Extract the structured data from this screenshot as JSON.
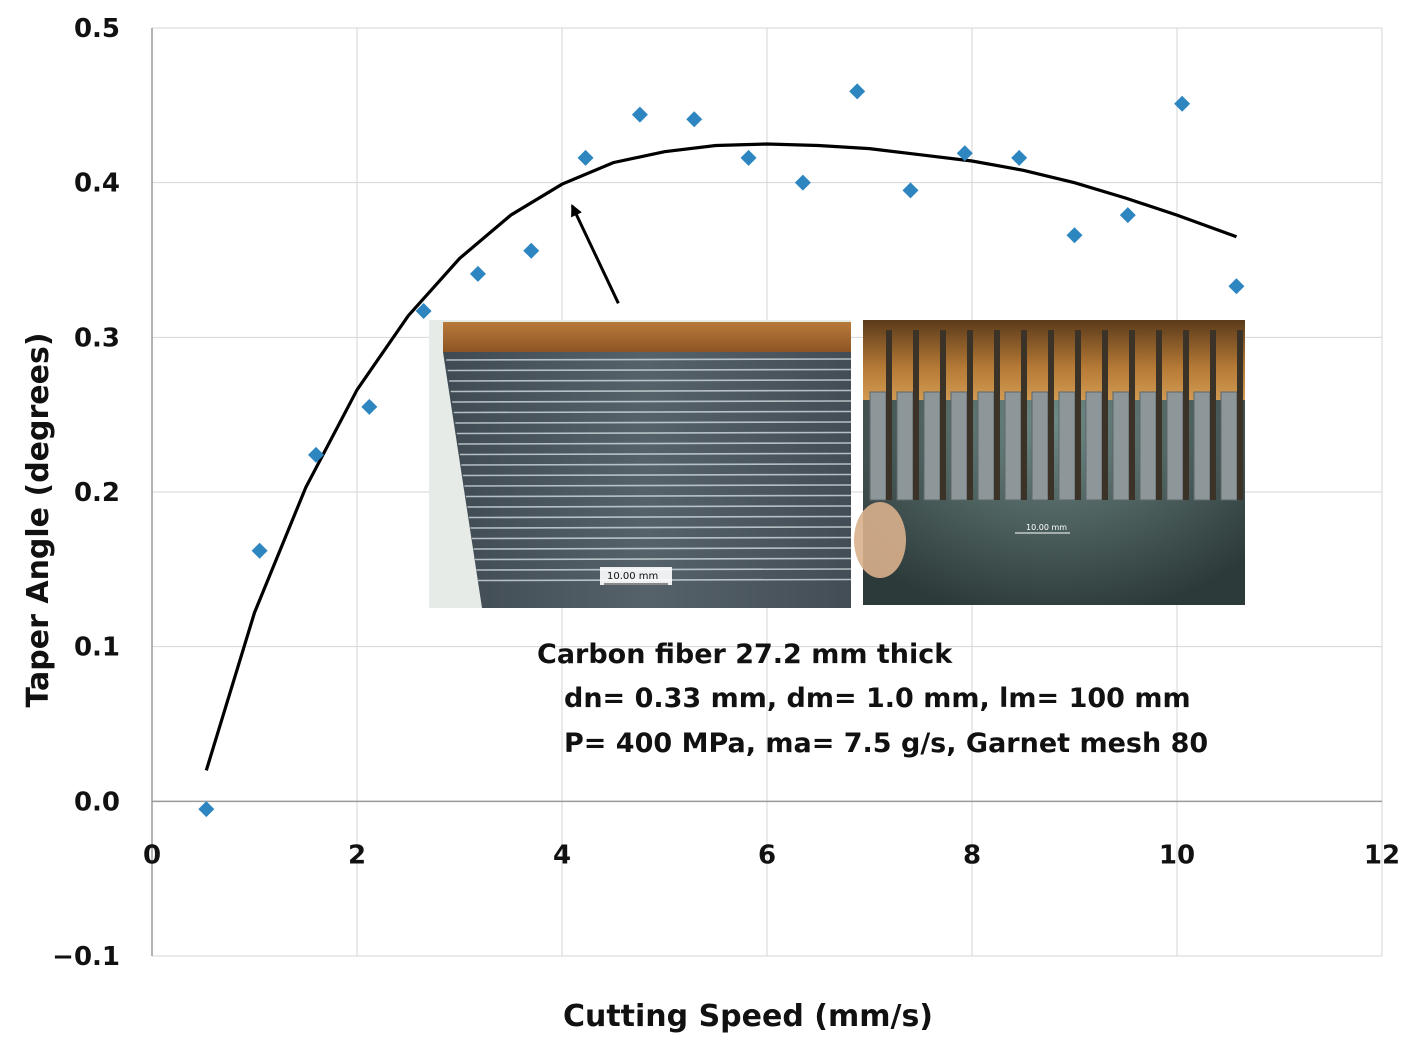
{
  "chart_data": {
    "type": "scatter",
    "title": "",
    "xlabel": "Cutting Speed (mm/s)",
    "ylabel": "Taper  Angle (degrees)",
    "xlim": [
      0,
      12
    ],
    "ylim": [
      -0.1,
      0.5
    ],
    "x_ticks": [
      0,
      2,
      4,
      6,
      8,
      10,
      12
    ],
    "x_tick_labels": [
      "0",
      "2",
      "4",
      "6",
      "8",
      "10",
      "12"
    ],
    "y_ticks": [
      -0.1,
      0.0,
      0.1,
      0.2,
      0.3,
      0.4,
      0.5
    ],
    "y_tick_labels": [
      "−0.1",
      "0.0",
      "0.1",
      "0.2",
      "0.3",
      "0.4",
      "0.5"
    ],
    "grid": true,
    "marker_color": "#2e86c1",
    "series": [
      {
        "marker": "diamond",
        "x": [
          0.53,
          1.05,
          1.6,
          2.12,
          2.65,
          3.18,
          3.7,
          4.23,
          4.76,
          5.29,
          5.82,
          6.35,
          6.88,
          7.4,
          7.93,
          8.46,
          9.0,
          9.52,
          10.05,
          10.58
        ],
        "y": [
          -0.005,
          0.162,
          0.224,
          0.255,
          0.317,
          0.341,
          0.356,
          0.416,
          0.444,
          0.441,
          0.416,
          0.4,
          0.459,
          0.395,
          0.419,
          0.416,
          0.366,
          0.379,
          0.451,
          0.333
        ]
      }
    ],
    "trendline": {
      "type": "polynomial",
      "x": [
        0.53,
        1.0,
        1.5,
        2.0,
        2.5,
        3.0,
        3.5,
        4.0,
        4.5,
        5.0,
        5.5,
        6.0,
        6.5,
        7.0,
        7.5,
        8.0,
        8.5,
        9.0,
        9.5,
        10.0,
        10.58
      ],
      "y": [
        0.02,
        0.122,
        0.203,
        0.266,
        0.314,
        0.351,
        0.379,
        0.399,
        0.413,
        0.42,
        0.424,
        0.425,
        0.424,
        0.422,
        0.418,
        0.414,
        0.408,
        0.4,
        0.39,
        0.379,
        0.365
      ],
      "color": "#000000"
    },
    "annotations": {
      "lines": [
        "Carbon fiber  27.2 mm thick",
        "dn= 0.33 mm, dm= 1.0 mm,  lm= 100 mm",
        "P= 400 MPa, ma= 7.5 g/s, Garnet mesh 80"
      ],
      "arrow": {
        "from": [
          4.55,
          0.322
        ],
        "to": [
          4.1,
          0.385
        ]
      }
    },
    "inset_photos": [
      {
        "scale_label": "10.00 mm"
      },
      {
        "scale_label": "10.00 mm"
      }
    ]
  }
}
